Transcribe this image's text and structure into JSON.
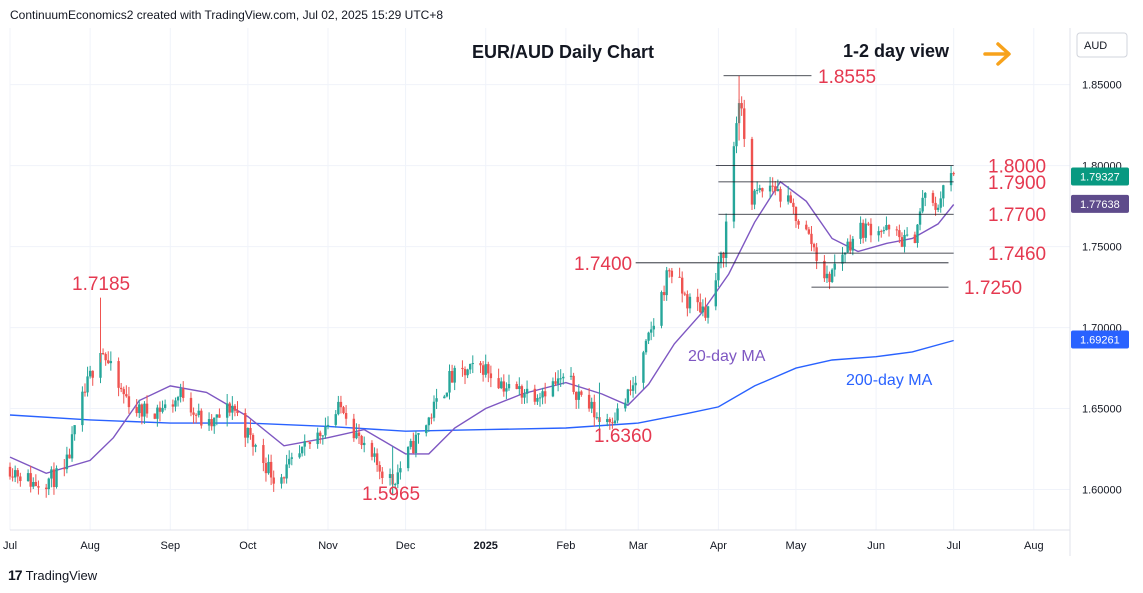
{
  "header": {
    "attribution": "ContinuumEconomics2 created with TradingView.com, Jul 02, 2025 15:29 UTC+8"
  },
  "footer": {
    "brand": "TradingView",
    "logo_text": "17"
  },
  "colors": {
    "up": "#26a69a",
    "down": "#ef5350",
    "level_label": "#e53950",
    "ma20": "#7e57c2",
    "ma200": "#2962ff",
    "arrow": "#f7a21b",
    "last_price_tag": "#089981",
    "ma20_tag": "#5e4b8b",
    "ma200_tag": "#2962ff"
  },
  "chart_data": {
    "type": "candlestick",
    "title": "EUR/AUD Daily Chart",
    "subtitle": "1-2 day view",
    "currency": "AUD",
    "ylim": [
      1.575,
      1.885
    ],
    "y_ticks": [
      "1.60000",
      "1.65000",
      "1.70000",
      "1.75000",
      "1.80000",
      "1.85000"
    ],
    "x_ticks": [
      "Jul",
      "Aug",
      "Sep",
      "Oct",
      "Nov",
      "Dec",
      "2025",
      "Feb",
      "Mar",
      "Apr",
      "May",
      "Jun",
      "Jul",
      "Aug"
    ],
    "x_tick_dates": [
      "2024-07-01",
      "2024-08-01",
      "2024-09-01",
      "2024-10-01",
      "2024-11-01",
      "2024-12-01",
      "2025-01-01",
      "2025-02-01",
      "2025-03-01",
      "2025-04-01",
      "2025-05-01",
      "2025-06-01",
      "2025-07-01",
      "2025-08-01"
    ],
    "x_range": [
      "2024-07-01",
      "2025-08-15"
    ],
    "last_price": "1.79327",
    "ma20_value": "1.77638",
    "ma200_value": "1.69261",
    "levels": [
      {
        "label": "1.8555",
        "value": 1.8555,
        "from": "2025-04-03",
        "to": "2025-05-07"
      },
      {
        "label": "1.8000",
        "value": 1.8,
        "from": "2025-03-31",
        "to": "2025-07-01"
      },
      {
        "label": "1.7900",
        "value": 1.79,
        "from": "2025-04-01",
        "to": "2025-07-01"
      },
      {
        "label": "1.7700",
        "value": 1.77,
        "from": "2025-04-01",
        "to": "2025-07-01"
      },
      {
        "label": "1.7460",
        "value": 1.746,
        "from": "2025-04-01",
        "to": "2025-07-01"
      },
      {
        "label": "1.7400",
        "value": 1.74,
        "from": "2025-02-28",
        "to": "2025-06-29"
      },
      {
        "label": "1.7250",
        "value": 1.725,
        "from": "2025-05-07",
        "to": "2025-06-29"
      }
    ],
    "annotations": [
      {
        "text": "1.7185",
        "value": 1.7185,
        "date": "2024-08-05"
      },
      {
        "text": "1.5965",
        "value": 1.5965,
        "date": "2024-11-26"
      },
      {
        "text": "1.6360",
        "value": 1.636,
        "date": "2025-02-14"
      }
    ],
    "series": [
      {
        "name": "20-day MA",
        "points": [
          [
            "2024-07-01",
            1.62
          ],
          [
            "2024-07-15",
            1.61
          ],
          [
            "2024-08-01",
            1.618
          ],
          [
            "2024-08-10",
            1.632
          ],
          [
            "2024-08-20",
            1.655
          ],
          [
            "2024-09-01",
            1.664
          ],
          [
            "2024-09-15",
            1.66
          ],
          [
            "2024-10-01",
            1.645
          ],
          [
            "2024-10-15",
            1.627
          ],
          [
            "2024-11-01",
            1.632
          ],
          [
            "2024-11-15",
            1.637
          ],
          [
            "2024-12-01",
            1.622
          ],
          [
            "2024-12-10",
            1.622
          ],
          [
            "2024-12-20",
            1.638
          ],
          [
            "2025-01-01",
            1.65
          ],
          [
            "2025-01-15",
            1.659
          ],
          [
            "2025-02-01",
            1.666
          ],
          [
            "2025-02-15",
            1.659
          ],
          [
            "2025-02-25",
            1.652
          ],
          [
            "2025-03-05",
            1.665
          ],
          [
            "2025-03-15",
            1.69
          ],
          [
            "2025-03-25",
            1.708
          ],
          [
            "2025-04-05",
            1.733
          ],
          [
            "2025-04-15",
            1.765
          ],
          [
            "2025-04-25",
            1.79
          ],
          [
            "2025-05-05",
            1.778
          ],
          [
            "2025-05-15",
            1.755
          ],
          [
            "2025-05-25",
            1.747
          ],
          [
            "2025-06-05",
            1.752
          ],
          [
            "2025-06-15",
            1.755
          ],
          [
            "2025-06-25",
            1.764
          ],
          [
            "2025-07-01",
            1.776
          ]
        ]
      },
      {
        "name": "200-day MA",
        "points": [
          [
            "2024-07-01",
            1.646
          ],
          [
            "2024-08-01",
            1.643
          ],
          [
            "2024-09-01",
            1.641
          ],
          [
            "2024-10-01",
            1.641
          ],
          [
            "2024-11-01",
            1.639
          ],
          [
            "2024-12-01",
            1.636
          ],
          [
            "2025-01-01",
            1.637
          ],
          [
            "2025-02-01",
            1.638
          ],
          [
            "2025-03-01",
            1.641
          ],
          [
            "2025-03-20",
            1.647
          ],
          [
            "2025-04-01",
            1.651
          ],
          [
            "2025-04-15",
            1.664
          ],
          [
            "2025-05-01",
            1.675
          ],
          [
            "2025-05-15",
            1.68
          ],
          [
            "2025-06-01",
            1.682
          ],
          [
            "2025-06-15",
            1.685
          ],
          [
            "2025-07-01",
            1.692
          ]
        ]
      }
    ],
    "price_path": [
      [
        "2024-07-01",
        1.614
      ],
      [
        "2024-07-10",
        1.604
      ],
      [
        "2024-07-22",
        1.609
      ],
      [
        "2024-07-29",
        1.655
      ],
      [
        "2024-08-05",
        1.689
      ],
      [
        "2024-08-12",
        1.662
      ],
      [
        "2024-08-20",
        1.648
      ],
      [
        "2024-08-31",
        1.651
      ],
      [
        "2024-09-06",
        1.66
      ],
      [
        "2024-09-15",
        1.637
      ],
      [
        "2024-09-25",
        1.652
      ],
      [
        "2024-10-03",
        1.628
      ],
      [
        "2024-10-12",
        1.606
      ],
      [
        "2024-10-20",
        1.618
      ],
      [
        "2024-10-31",
        1.64
      ],
      [
        "2024-11-07",
        1.652
      ],
      [
        "2024-11-15",
        1.623
      ],
      [
        "2024-11-22",
        1.612
      ],
      [
        "2024-11-26",
        1.605
      ],
      [
        "2024-12-03",
        1.625
      ],
      [
        "2024-12-09",
        1.641
      ],
      [
        "2024-12-18",
        1.668
      ],
      [
        "2024-12-31",
        1.676
      ],
      [
        "2025-01-10",
        1.662
      ],
      [
        "2025-01-20",
        1.66
      ],
      [
        "2025-02-01",
        1.668
      ],
      [
        "2025-02-08",
        1.656
      ],
      [
        "2025-02-14",
        1.643
      ],
      [
        "2025-02-21",
        1.647
      ],
      [
        "2025-02-28",
        1.666
      ],
      [
        "2025-03-08",
        1.708
      ],
      [
        "2025-03-13",
        1.737
      ],
      [
        "2025-03-20",
        1.716
      ],
      [
        "2025-03-28",
        1.711
      ],
      [
        "2025-04-03",
        1.748
      ],
      [
        "2025-04-07",
        1.812
      ],
      [
        "2025-04-09",
        1.842
      ],
      [
        "2025-04-14",
        1.78
      ],
      [
        "2025-04-22",
        1.788
      ],
      [
        "2025-04-30",
        1.772
      ],
      [
        "2025-05-07",
        1.753
      ],
      [
        "2025-05-13",
        1.729
      ],
      [
        "2025-05-18",
        1.744
      ],
      [
        "2025-05-25",
        1.76
      ],
      [
        "2025-06-01",
        1.763
      ],
      [
        "2025-06-08",
        1.757
      ],
      [
        "2025-06-15",
        1.751
      ],
      [
        "2025-06-20",
        1.784
      ],
      [
        "2025-06-24",
        1.77
      ],
      [
        "2025-06-27",
        1.789
      ],
      [
        "2025-07-01",
        1.793
      ]
    ]
  }
}
